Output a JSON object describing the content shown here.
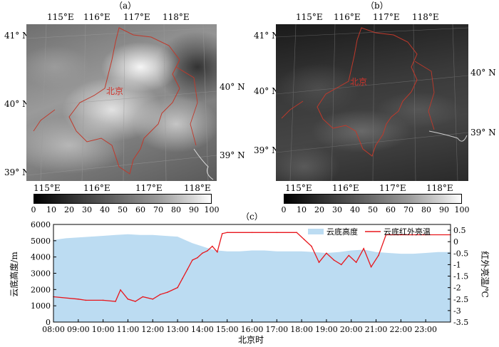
{
  "panel_a": {
    "label": "（a）",
    "top_lon": [
      "115°E",
      "116°E",
      "117°E",
      "118°E"
    ],
    "bottom_lon": [
      "115°E",
      "116°E",
      "117°E",
      "118°E"
    ],
    "left_lat": [
      "41° N",
      "40° N",
      "39° N"
    ],
    "right_lat": [
      "40° N",
      "39° N"
    ],
    "city_label": "北京",
    "colorbar_ticks": [
      "0",
      "10",
      "20",
      "30",
      "40",
      "50",
      "60",
      "70",
      "80",
      "90",
      "100"
    ]
  },
  "panel_b": {
    "label": "（b）",
    "top_lon": [
      "115°E",
      "116°E",
      "117°E",
      "118°E"
    ],
    "bottom_lon": [
      "115°E",
      "116°E",
      "117°E",
      "118°E"
    ],
    "left_lat": [
      "41° N",
      "40° N",
      "39° N"
    ],
    "right_lat": [
      "40° N",
      "39° N"
    ],
    "city_label": "北京",
    "colorbar_ticks": [
      "0",
      "10",
      "20",
      "30",
      "40",
      "50",
      "60",
      "70",
      "80",
      "90",
      "100"
    ]
  },
  "panel_c": {
    "label": "（c）"
  },
  "colors": {
    "cloud_height_fill": "#bcdcf2",
    "brightness_temp_line": "#e8161c",
    "boundary": "#c0392b"
  },
  "chart_data": {
    "type": "area",
    "xlabel": "北京时",
    "ylabel": "云底高度/m",
    "y2label": "红外亮温/℃",
    "x_ticks": [
      "08:00",
      "09:00",
      "10:00",
      "11:00",
      "12:00",
      "13:00",
      "14:00",
      "15:00",
      "16:00",
      "17:00",
      "18:00",
      "19:00",
      "20:00",
      "21:00",
      "22:00",
      "23:00"
    ],
    "y_ticks": [
      "0",
      "1000",
      "2000",
      "3000",
      "4000",
      "5000",
      "6000"
    ],
    "y2_ticks": [
      "0.5",
      "0",
      "-0.5",
      "-1",
      "-1.5",
      "-2",
      "-2.5",
      "-3",
      "-3.5"
    ],
    "xlim": [
      8,
      24
    ],
    "ylim": [
      0,
      6000
    ],
    "y2lim": [
      -3.5,
      0.75
    ],
    "legend_position": "top-right",
    "series": [
      {
        "name": "云底高度",
        "axis": "left",
        "x": [
          8.0,
          8.5,
          9.0,
          9.5,
          10.0,
          10.5,
          11.0,
          11.5,
          12.0,
          12.5,
          13.0,
          13.3,
          13.6,
          14.0,
          14.3,
          14.6,
          15.0,
          15.5,
          16.0,
          16.5,
          17.0,
          17.5,
          18.0,
          18.5,
          19.0,
          19.5,
          20.0,
          20.5,
          21.0,
          21.5,
          22.0,
          22.5,
          23.0,
          23.5,
          24.0
        ],
        "values": [
          5050,
          5150,
          5200,
          5250,
          5300,
          5350,
          5400,
          5350,
          5350,
          5300,
          5250,
          5050,
          4850,
          4650,
          4500,
          4400,
          4350,
          4350,
          4400,
          4400,
          4350,
          4350,
          4350,
          4300,
          4250,
          4300,
          4400,
          4450,
          4300,
          4250,
          4200,
          4200,
          4250,
          4300,
          4300
        ]
      },
      {
        "name": "云底红外亮温",
        "axis": "right",
        "x": [
          8.0,
          9.0,
          9.3,
          10.0,
          10.5,
          10.7,
          11.0,
          11.3,
          11.6,
          12.0,
          12.3,
          12.6,
          13.0,
          13.2,
          13.4,
          13.6,
          13.8,
          14.0,
          14.2,
          14.4,
          14.6,
          14.8,
          15.0,
          16.0,
          17.0,
          17.8,
          18.1,
          18.4,
          18.7,
          19.0,
          19.3,
          19.6,
          19.9,
          20.2,
          20.5,
          20.8,
          21.1,
          21.4,
          22.0,
          23.0,
          24.0
        ],
        "values": [
          -2.4,
          -2.5,
          -2.55,
          -2.55,
          -2.6,
          -2.1,
          -2.5,
          -2.6,
          -2.4,
          -2.5,
          -2.3,
          -2.2,
          -2.0,
          -1.6,
          -1.2,
          -0.8,
          -0.7,
          -0.5,
          -0.4,
          -0.2,
          -0.45,
          0.35,
          0.4,
          0.4,
          0.4,
          0.4,
          0.1,
          -0.2,
          -0.9,
          -0.5,
          -0.8,
          -1.0,
          -0.6,
          -0.9,
          -0.3,
          -1.1,
          -0.6,
          0.3,
          0.3,
          0.3,
          0.3
        ]
      }
    ]
  }
}
